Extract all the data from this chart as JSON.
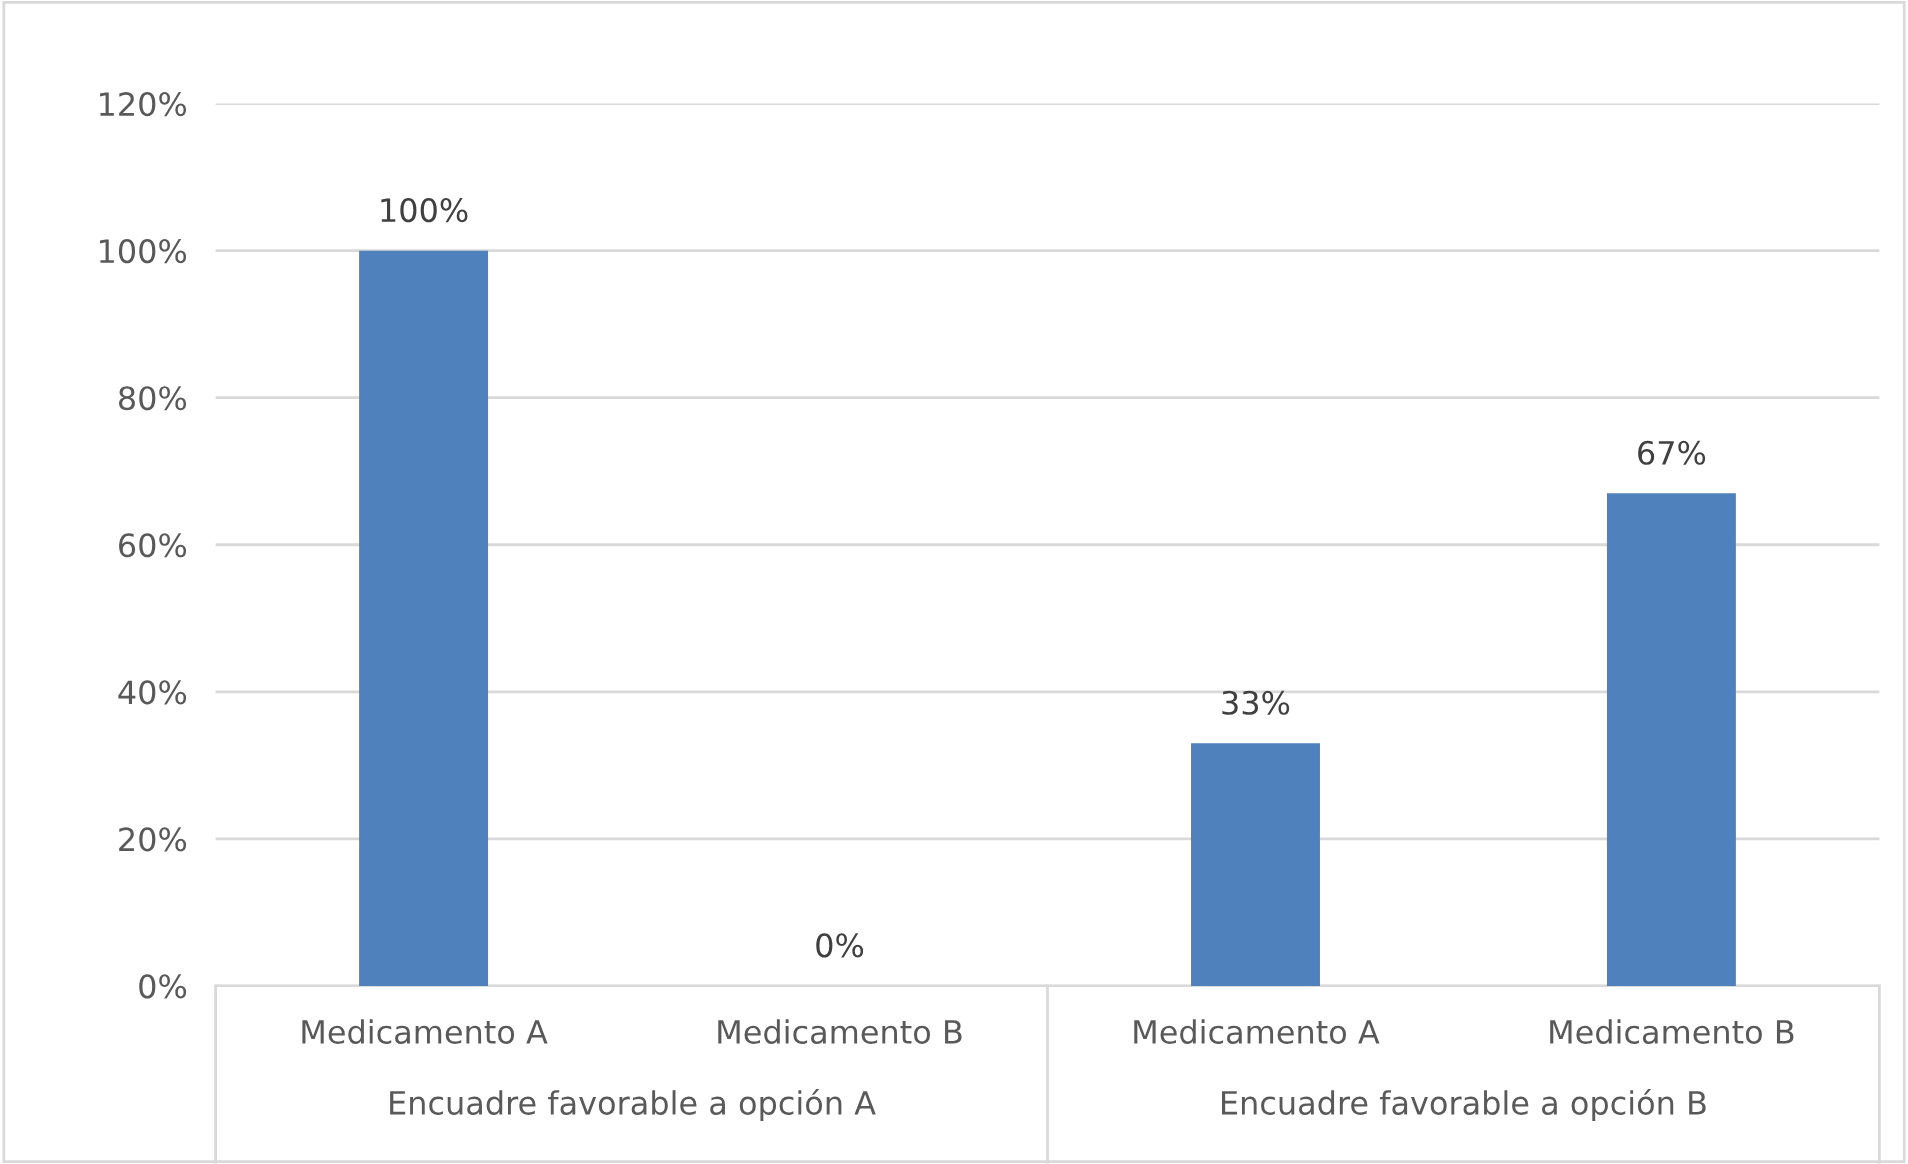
{
  "chart_data": {
    "type": "bar",
    "categories": [
      "Medicamento A",
      "Medicamento B",
      "Medicamento A",
      "Medicamento B"
    ],
    "values": [
      100,
      0,
      33,
      67
    ],
    "value_labels": [
      "100%",
      "0%",
      "33%",
      "67%"
    ],
    "color": "#4f81bd",
    "ylim": [
      0,
      120
    ],
    "yticks": [
      {
        "value": 0,
        "label": "0%"
      },
      {
        "value": 20,
        "label": "20%"
      },
      {
        "value": 40,
        "label": "40%"
      },
      {
        "value": 60,
        "label": "60%"
      },
      {
        "value": 80,
        "label": "80%"
      },
      {
        "value": 100,
        "label": "100%"
      },
      {
        "value": 120,
        "label": "120%"
      }
    ],
    "grid": "y",
    "annotations": [
      "Encuadre favorable a opción A",
      "Encuadre favorable a opción B"
    ]
  }
}
